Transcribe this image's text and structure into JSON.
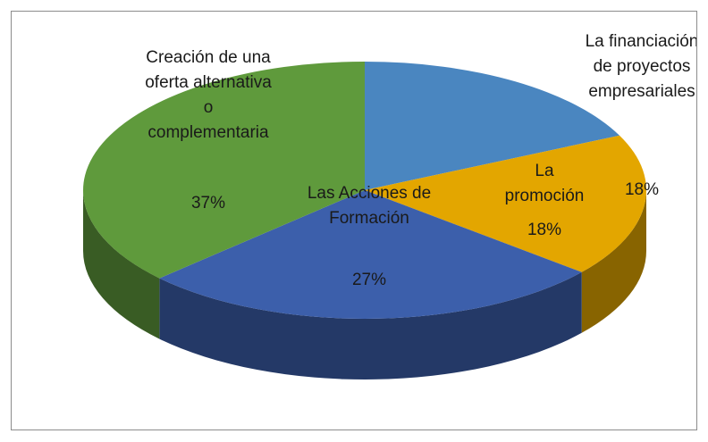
{
  "chart_data": {
    "type": "pie3d",
    "categories": [
      "La financiación de proyectos empresariales",
      "La promoción",
      "Las Acciones de Formación",
      "Creación de una oferta alternativa o complementaria"
    ],
    "values": [
      18,
      18,
      27,
      37
    ],
    "value_labels": [
      "18%",
      "18%",
      "27%",
      "37%"
    ],
    "colors": [
      "#4a86c0",
      "#e3a600",
      "#3c5fab",
      "#5f9a3c"
    ]
  }
}
